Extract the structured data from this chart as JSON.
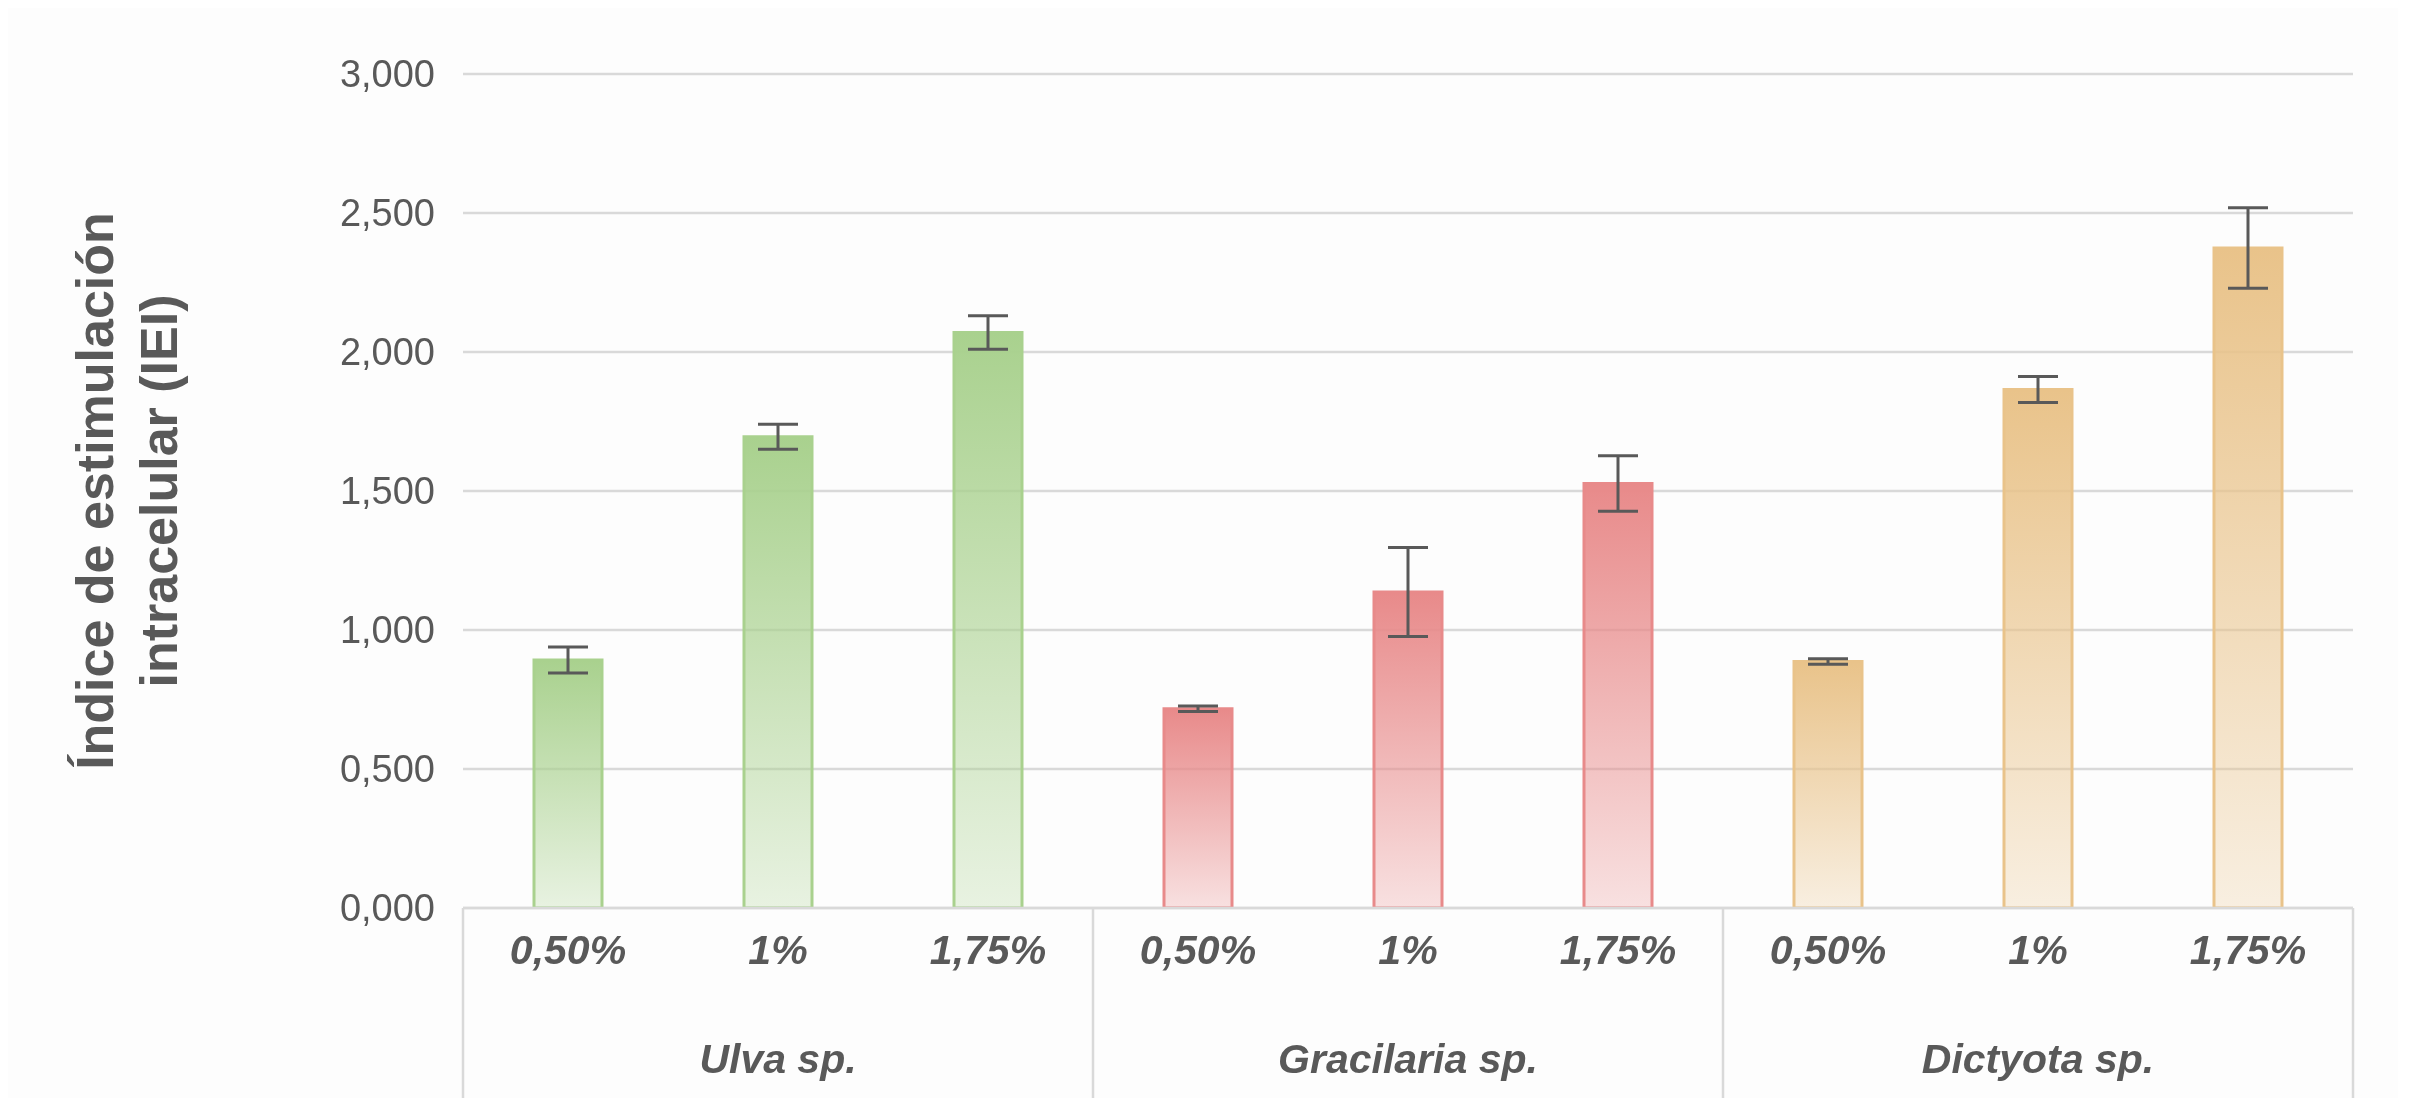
{
  "chart_data": {
    "type": "bar",
    "ylabel": "Índice de estimulación intracelular (IEI)",
    "categories": [
      "0,50%",
      "1%",
      "1,75%",
      "0,50%",
      "1%",
      "1,75%",
      "0,50%",
      "1%",
      "1,75%"
    ],
    "values": [
      0.892,
      1.695,
      2.07,
      0.717,
      1.137,
      1.527,
      0.887,
      1.865,
      2.374
    ],
    "errors": [
      0.047,
      0.045,
      0.06,
      0.01,
      0.16,
      0.1,
      0.01,
      0.047,
      0.145
    ],
    "colors": [
      "#a9d18e",
      "#a9d18e",
      "#a9d18e",
      "#e88a8a",
      "#e88a8a",
      "#e88a8a",
      "#e9c38a",
      "#e9c38a",
      "#e9c38a"
    ],
    "ylim": [
      0,
      3
    ],
    "yticks": [
      {
        "value": 0,
        "label": "0,000"
      },
      {
        "value": 0.5,
        "label": "0,500"
      },
      {
        "value": 1,
        "label": "1,000"
      },
      {
        "value": 1.5,
        "label": "1,500"
      },
      {
        "value": 2,
        "label": "2,000"
      },
      {
        "value": 2.5,
        "label": "2,500"
      },
      {
        "value": 3,
        "label": "3,000"
      }
    ],
    "grid": "y",
    "legend": false,
    "annotations": [
      "Ulva sp.",
      "Gracilaria sp.",
      "Dictyota sp."
    ]
  }
}
